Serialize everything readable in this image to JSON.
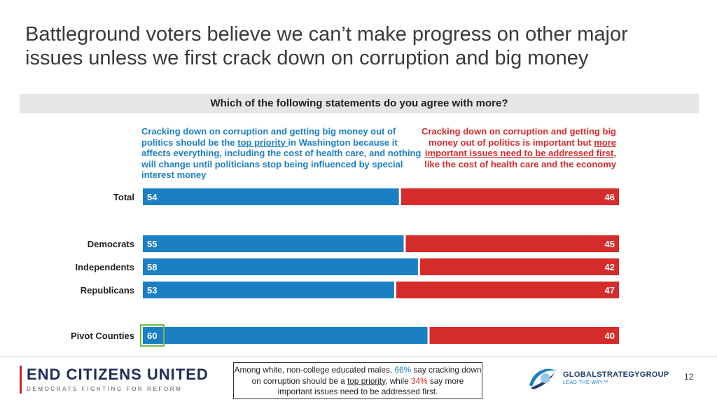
{
  "title": "Battleground voters believe we can’t make progress on other major issues unless we first crack down on corruption and big money",
  "question": "Which of the following statements do you agree with more?",
  "statement_left": {
    "pre": "Cracking down on corruption and getting big money out of politics should be the ",
    "underlined": "top priority ",
    "post": "in Washington because it affects everything, including the cost of health care, and nothing will change until politicians stop being influenced by special interest money"
  },
  "statement_right": {
    "pre": "Cracking down on corruption and getting big money out of politics is important but ",
    "underlined": "more important issues need to be addressed first",
    "post": ", like the cost of health care and the economy"
  },
  "chart_data": {
    "type": "bar",
    "orientation": "horizontal",
    "stacked": true,
    "categories": [
      "Total",
      "Democrats",
      "Independents",
      "Republicans",
      "Pivot Counties"
    ],
    "series": [
      {
        "key": "top_priority",
        "values": [
          54,
          55,
          58,
          53,
          60
        ],
        "color": "#1b7fc4"
      },
      {
        "key": "other_issues_first",
        "values": [
          46,
          45,
          42,
          47,
          40
        ],
        "color": "#d62b2b"
      }
    ],
    "xlim": [
      0,
      100
    ],
    "highlighted": {
      "category": "Pivot Counties",
      "series": "top_priority"
    }
  },
  "colors": {
    "blue": "#1b7fc4",
    "red": "#d62b2b",
    "highlight": "#6abf47",
    "question_bg": "#e6e6e6"
  },
  "callout": {
    "pre": "Among white, non-college educated males, ",
    "pct1": "66%",
    "mid1": " say cracking down on corruption should be a ",
    "underlined": "top priority",
    "mid2": ", while ",
    "pct2": "34%",
    "post": " say more important issues need to be addressed first."
  },
  "logo_left": {
    "name": "END CITIZENS UNITED",
    "tagline": "DEMOCRATS FIGHTING FOR REFORM"
  },
  "logo_right": {
    "name": "GLOBALSTRATEGYGROUP",
    "tagline": "LEAD THE WAY™",
    "icon": "globe-swoosh-icon"
  },
  "page_number": "12"
}
